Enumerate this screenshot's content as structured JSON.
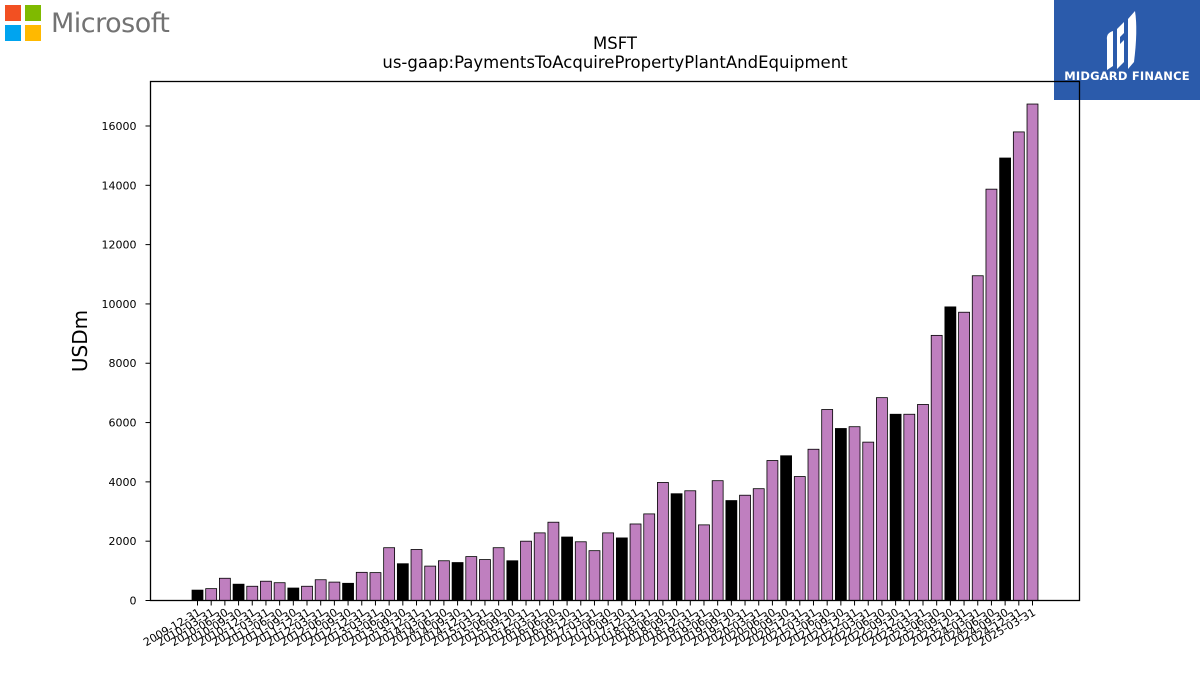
{
  "header": {
    "brand_name": "Microsoft",
    "brand_colors": [
      "#f25022",
      "#7fba00",
      "#00a4ef",
      "#ffb900"
    ],
    "badge_text": "MIDGARD FINANCE",
    "badge_color": "#2b5bab"
  },
  "chart_data": {
    "type": "bar",
    "title": "MSFT",
    "subtitle": "us-gaap:PaymentsToAcquirePropertyPlantAndEquipment",
    "xlabel": "",
    "ylabel": "USDm",
    "ylim": [
      0,
      17500
    ],
    "yticks": [
      0,
      2000,
      4000,
      6000,
      8000,
      10000,
      12000,
      14000,
      16000
    ],
    "grid": false,
    "colors": {
      "quarter": "#bf7fbf",
      "fiscal_year_end": "#000000"
    },
    "categories": [
      "2009-12-31",
      "2010-03-31",
      "2010-06-30",
      "2010-09-30",
      "2010-12-31",
      "2011-03-31",
      "2011-06-30",
      "2011-09-30",
      "2011-12-31",
      "2012-03-31",
      "2012-06-30",
      "2012-09-30",
      "2012-12-31",
      "2013-03-31",
      "2013-06-30",
      "2013-09-30",
      "2013-12-31",
      "2014-03-31",
      "2014-06-30",
      "2014-09-30",
      "2014-12-31",
      "2015-03-31",
      "2015-06-30",
      "2015-09-30",
      "2015-12-31",
      "2016-03-31",
      "2016-06-30",
      "2016-09-30",
      "2016-12-31",
      "2017-03-31",
      "2017-06-30",
      "2017-09-30",
      "2017-12-31",
      "2018-03-31",
      "2018-06-30",
      "2018-09-30",
      "2018-12-31",
      "2019-03-31",
      "2019-06-30",
      "2019-09-30",
      "2019-12-31",
      "2020-03-31",
      "2020-06-30",
      "2020-09-30",
      "2020-12-31",
      "2021-03-31",
      "2021-06-30",
      "2021-09-30",
      "2021-12-31",
      "2022-03-31",
      "2022-06-30",
      "2022-09-30",
      "2022-12-31",
      "2023-03-31",
      "2023-06-30",
      "2023-09-30",
      "2023-12-31",
      "2024-03-31",
      "2024-06-30",
      "2024-09-30",
      "2024-12-31",
      "2025-03-31"
    ],
    "values": [
      350,
      400,
      750,
      550,
      480,
      650,
      600,
      420,
      480,
      700,
      620,
      580,
      950,
      940,
      1780,
      1240,
      1720,
      1160,
      1340,
      1280,
      1480,
      1380,
      1780,
      1340,
      2000,
      2280,
      2640,
      2140,
      1980,
      1680,
      2280,
      2110,
      2580,
      2920,
      3980,
      3600,
      3700,
      2550,
      4040,
      3370,
      3550,
      3770,
      4720,
      4880,
      4180,
      5100,
      6440,
      5800,
      5860,
      5340,
      6840,
      6280,
      6280,
      6610,
      8940,
      9900,
      9720,
      10950,
      13870,
      14920,
      15800,
      16740
    ],
    "black_categories": [
      "2009-12-31",
      "2010-09-30",
      "2011-09-30",
      "2012-09-30",
      "2013-09-30",
      "2014-09-30",
      "2015-09-30",
      "2016-09-30",
      "2017-09-30",
      "2018-09-30",
      "2019-09-30",
      "2020-09-30",
      "2021-09-30",
      "2022-09-30",
      "2023-09-30",
      "2024-09-30"
    ]
  }
}
